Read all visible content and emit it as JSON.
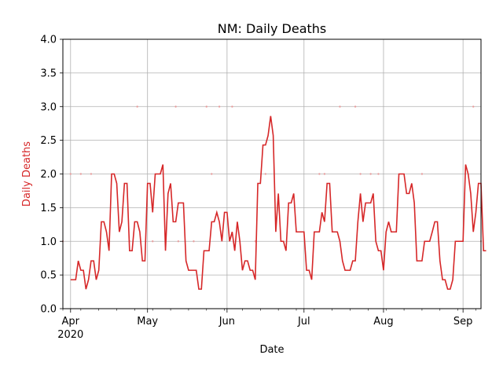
{
  "chart_data": {
    "type": "line",
    "title": "NM: Daily Deaths",
    "xlabel": "Date",
    "ylabel": "Daily Deaths",
    "ylabel_color": "#d62728",
    "line_color": "#d62728",
    "grid": true,
    "x_start": "2020-03-29",
    "x_end": "2020-09-08",
    "ylim": [
      0,
      4.0
    ],
    "y_ticks": [
      "0.0",
      "0.5",
      "1.0",
      "1.5",
      "2.0",
      "2.5",
      "3.0",
      "3.5",
      "4.0"
    ],
    "x_ticks": [
      {
        "date": "2020-04-01",
        "label": "Apr",
        "sublabel": "2020"
      },
      {
        "date": "2020-05-01",
        "label": "May",
        "sublabel": ""
      },
      {
        "date": "2020-06-01",
        "label": "Jun",
        "sublabel": ""
      },
      {
        "date": "2020-07-01",
        "label": "Jul",
        "sublabel": ""
      },
      {
        "date": "2020-08-01",
        "label": "Aug",
        "sublabel": ""
      },
      {
        "date": "2020-09-01",
        "label": "Sep",
        "sublabel": ""
      }
    ],
    "series": [
      {
        "start_date": "2020-04-01",
        "values": [
          0.43,
          0.43,
          0.43,
          0.71,
          0.57,
          0.57,
          0.29,
          0.43,
          0.71,
          0.71,
          0.43,
          0.57,
          1.29,
          1.29,
          1.14,
          0.86,
          2.0,
          2.0,
          1.86,
          1.14,
          1.29,
          1.86,
          1.86,
          0.86,
          0.86,
          1.29,
          1.29,
          1.14,
          0.71,
          0.71,
          1.86,
          1.86,
          1.43,
          2.0,
          2.0,
          2.0,
          2.14,
          0.86,
          1.71,
          1.86,
          1.29,
          1.29,
          1.57,
          1.57,
          1.57,
          0.71,
          0.57,
          0.57,
          0.57,
          0.57,
          0.29,
          0.29,
          0.86,
          0.86,
          0.86,
          1.29,
          1.29,
          1.43,
          1.29,
          1.0,
          1.43,
          1.43,
          1.0,
          1.14,
          0.86,
          1.29,
          1.0,
          0.57,
          0.71,
          0.71,
          0.57,
          0.57,
          0.43,
          1.86,
          1.86,
          2.43,
          2.43,
          2.57,
          2.86,
          2.57,
          1.14,
          1.71,
          1.0,
          1.0,
          0.86,
          1.57,
          1.57,
          1.71,
          1.14,
          1.14,
          1.14,
          1.14,
          0.57,
          0.57,
          0.43,
          1.14,
          1.14,
          1.14,
          1.43,
          1.29,
          1.86,
          1.86,
          1.14,
          1.14,
          1.14,
          1.0,
          0.71,
          0.57,
          0.57,
          0.57,
          0.71,
          0.71,
          1.29,
          1.71,
          1.29,
          1.57,
          1.57,
          1.57,
          1.71,
          1.0,
          0.86,
          0.86,
          0.57,
          1.14,
          1.29,
          1.14,
          1.14,
          1.14,
          2.0,
          2.0,
          2.0,
          1.71,
          1.71,
          1.86,
          1.57,
          0.71,
          0.71,
          0.71,
          1.0,
          1.0,
          1.0,
          1.14,
          1.29,
          1.29,
          0.71,
          0.43,
          0.43,
          0.29,
          0.29,
          0.43,
          1.0,
          1.0,
          1.0,
          1.0,
          2.14,
          2.0,
          1.71,
          1.14,
          1.43,
          1.86,
          1.86,
          0.86,
          0.86
        ]
      }
    ],
    "markers": [
      {
        "date": "2020-03-29",
        "value": 1.0
      },
      {
        "date": "2020-04-01",
        "value": 2.0
      },
      {
        "date": "2020-04-05",
        "value": 2.0
      },
      {
        "date": "2020-04-09",
        "value": 2.0
      },
      {
        "date": "2020-04-24",
        "value": 1.0
      },
      {
        "date": "2020-04-27",
        "value": 3.0
      },
      {
        "date": "2020-05-03",
        "value": 1.0
      },
      {
        "date": "2020-05-12",
        "value": 3.0
      },
      {
        "date": "2020-05-13",
        "value": 1.0
      },
      {
        "date": "2020-05-19",
        "value": 1.0
      },
      {
        "date": "2020-05-24",
        "value": 3.0
      },
      {
        "date": "2020-05-26",
        "value": 2.0
      },
      {
        "date": "2020-05-29",
        "value": 3.0
      },
      {
        "date": "2020-06-03",
        "value": 3.0
      },
      {
        "date": "2020-06-12",
        "value": 1.0
      },
      {
        "date": "2020-06-16",
        "value": 2.0
      },
      {
        "date": "2020-07-07",
        "value": 2.0
      },
      {
        "date": "2020-07-09",
        "value": 2.0
      },
      {
        "date": "2020-07-15",
        "value": 3.0
      },
      {
        "date": "2020-07-21",
        "value": 3.0
      },
      {
        "date": "2020-07-23",
        "value": 2.0
      },
      {
        "date": "2020-07-27",
        "value": 2.0
      },
      {
        "date": "2020-07-30",
        "value": 2.0
      },
      {
        "date": "2020-08-16",
        "value": 2.0
      },
      {
        "date": "2020-09-05",
        "value": 3.0
      },
      {
        "date": "2020-09-08",
        "value": 1.0
      }
    ]
  }
}
